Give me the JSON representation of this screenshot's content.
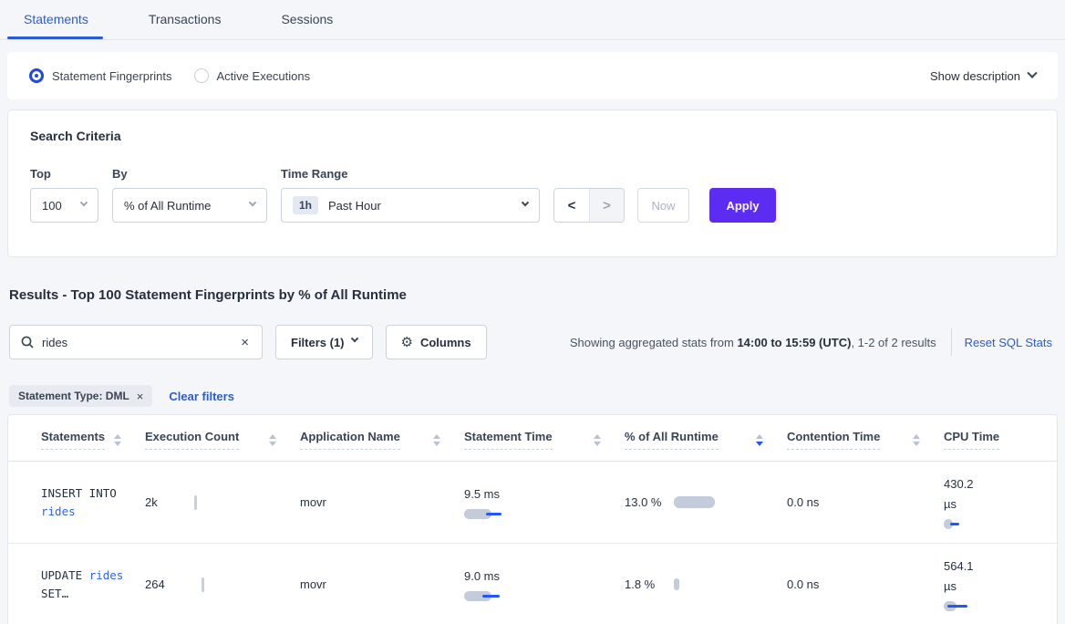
{
  "tabs": [
    {
      "label": "Statements",
      "active": true
    },
    {
      "label": "Transactions",
      "active": false
    },
    {
      "label": "Sessions",
      "active": false
    }
  ],
  "view_mode": {
    "options": [
      {
        "label": "Statement Fingerprints",
        "selected": true
      },
      {
        "label": "Active Executions",
        "selected": false
      }
    ],
    "show_description_label": "Show description"
  },
  "search_criteria": {
    "title": "Search Criteria",
    "top": {
      "label": "Top",
      "value": "100"
    },
    "by": {
      "label": "By",
      "value": "% of All Runtime"
    },
    "time_range": {
      "label": "Time Range",
      "badge": "1h",
      "value": "Past Hour"
    },
    "prev_label": "<",
    "next_label": ">",
    "now_label": "Now",
    "apply_label": "Apply"
  },
  "results": {
    "heading": "Results - Top 100 Statement Fingerprints by % of All Runtime",
    "search_value": "rides",
    "search_icon": "magnifier-icon",
    "clear_icon": "×",
    "filters_label": "Filters (1)",
    "columns_label": "Columns",
    "columns_icon": "⚙",
    "stats_prefix": "Showing aggregated stats from ",
    "stats_bold": "14:00 to 15:59 (UTC)",
    "stats_suffix": ", 1-2 of 2 results",
    "reset_label": "Reset SQL Stats",
    "filter_chip": "Statement Type: DML",
    "chip_close": "×",
    "clear_filters_label": "Clear filters"
  },
  "table": {
    "columns": [
      {
        "label": "Statements"
      },
      {
        "label": "Execution Count"
      },
      {
        "label": "Application Name"
      },
      {
        "label": "Statement Time"
      },
      {
        "label": "% of All Runtime"
      },
      {
        "label": "Contention Time"
      },
      {
        "label": "CPU Time"
      }
    ],
    "sort_column_index": 4,
    "sort_direction": "desc",
    "rows": [
      {
        "stmt_prefix": "INSERT INTO ",
        "stmt_link": "rides",
        "stmt_suffix": "",
        "exec_count": "2k",
        "app_name": "movr",
        "stmt_time": "9.5 ms",
        "stmt_bar": [
          30,
          24,
          17
        ],
        "runtime_pct": "13.0 %",
        "runtime_bar": 45,
        "contention": "0.0 ns",
        "cpu": "430.2 µs",
        "cpu_bar": [
          10,
          7,
          10
        ]
      },
      {
        "stmt_prefix": "UPDATE ",
        "stmt_link": "rides",
        "stmt_suffix": " SET…",
        "exec_count": "264",
        "app_name": "movr",
        "stmt_time": "9.0 ms",
        "stmt_bar": [
          30,
          20,
          19
        ],
        "runtime_pct": "1.8 %",
        "runtime_bar": 6,
        "contention": "0.0 ns",
        "cpu": "564.1 µs",
        "cpu_bar": [
          14,
          4,
          22
        ]
      }
    ]
  },
  "colors": {
    "accent_blue": "#2a5bd7",
    "link_blue": "#2a5cd6",
    "mono_link_blue": "#2e62f5",
    "apply_purple": "#5c2cf2",
    "bar_gray": "#c4cbdb",
    "bar_blue": "#2356ff",
    "page_bg": "#f4f6fa"
  }
}
